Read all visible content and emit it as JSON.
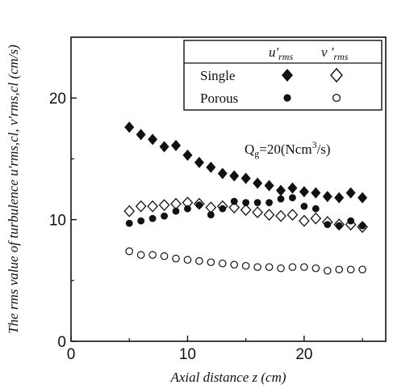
{
  "chart_data": {
    "type": "scatter",
    "xlabel": "Axial distance z (cm)",
    "ylabel": "The rms value of turbulence u'rms,cl, v'rms,cl (cm/s)",
    "xlim": [
      0,
      27
    ],
    "ylim": [
      0,
      25
    ],
    "xticks": [
      0,
      10,
      20
    ],
    "yticks": [
      0,
      10,
      20
    ],
    "xtick_labels": [
      "0",
      "10",
      "20"
    ],
    "ytick_labels": [
      "0",
      "10",
      "20"
    ],
    "grid": false,
    "legend": {
      "placement": "top-right",
      "col_u": "u'",
      "col_u_sub": "rms",
      "col_v": "v '",
      "col_v_sub": "rms",
      "row_single": "Single",
      "row_porous": "Porous"
    },
    "annotation": {
      "text": "Qg=20(Ncm3/s)",
      "q": "Q",
      "q_sub": "g",
      "mid": "=20(Ncm",
      "sup": "3",
      "end": "/s)"
    },
    "series": [
      {
        "key": "single_u",
        "marker": "filled-diamond",
        "x": [
          5,
          6,
          7,
          8,
          9,
          10,
          11,
          12,
          13,
          14,
          15,
          16,
          17,
          18,
          19,
          20,
          21,
          22,
          23,
          24,
          25
        ],
        "y": [
          17.6,
          17.0,
          16.6,
          16.0,
          16.1,
          15.3,
          14.7,
          14.3,
          13.8,
          13.6,
          13.4,
          13.0,
          12.8,
          12.4,
          12.6,
          12.3,
          12.2,
          11.9,
          11.8,
          12.2,
          11.8
        ]
      },
      {
        "key": "single_v",
        "marker": "open-diamond",
        "x": [
          5,
          6,
          7,
          8,
          9,
          10,
          11,
          12,
          13,
          14,
          15,
          16,
          17,
          18,
          19,
          20,
          21,
          22,
          23,
          24,
          25
        ],
        "y": [
          10.7,
          11.1,
          11.1,
          11.2,
          11.3,
          11.4,
          11.3,
          11.0,
          11.1,
          11.0,
          10.8,
          10.6,
          10.4,
          10.3,
          10.4,
          9.9,
          10.1,
          9.8,
          9.6,
          9.6,
          9.4
        ]
      },
      {
        "key": "porous_u",
        "marker": "filled-circle",
        "x": [
          5,
          6,
          7,
          8,
          9,
          10,
          11,
          12,
          13,
          14,
          15,
          16,
          17,
          18,
          19,
          20,
          21,
          22,
          23,
          24,
          25
        ],
        "y": [
          9.7,
          9.9,
          10.1,
          10.3,
          10.7,
          10.9,
          11.2,
          10.4,
          10.9,
          11.5,
          11.4,
          11.4,
          11.4,
          11.7,
          11.8,
          11.1,
          10.9,
          9.6,
          9.5,
          9.9,
          9.5
        ]
      },
      {
        "key": "porous_v",
        "marker": "open-circle",
        "x": [
          5,
          6,
          7,
          8,
          9,
          10,
          11,
          12,
          13,
          14,
          15,
          16,
          17,
          18,
          19,
          20,
          21,
          22,
          23,
          24,
          25
        ],
        "y": [
          7.4,
          7.1,
          7.1,
          7.0,
          6.8,
          6.7,
          6.6,
          6.5,
          6.4,
          6.3,
          6.2,
          6.1,
          6.1,
          6.0,
          6.1,
          6.1,
          6.0,
          5.8,
          5.9,
          5.9,
          5.9
        ]
      }
    ]
  }
}
